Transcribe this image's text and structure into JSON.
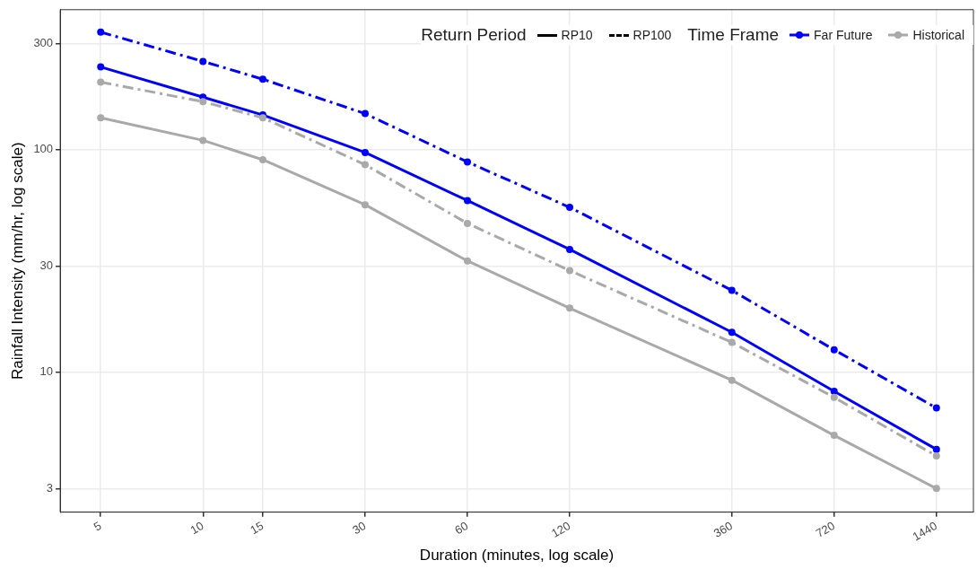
{
  "chart_data": {
    "type": "line",
    "xlabel": "Duration (minutes, log scale)",
    "ylabel": "Rainfall Intensity (mm/hr, log scale)",
    "log": "xy",
    "grid": true,
    "marker": "circle",
    "legend": "top right",
    "legend_title": "Time Frame",
    "annotations": [
      "Return Period",
      "RP10",
      "RP100"
    ],
    "xlim": [
      3.8,
      1850
    ],
    "xticks": [
      5,
      10,
      15,
      30,
      60,
      120,
      360,
      720,
      1440
    ],
    "ylim": [
      2.35,
      425
    ],
    "yticks": [
      3,
      10,
      30,
      100,
      300
    ],
    "x": [
      5,
      10,
      15,
      30,
      60,
      120,
      360,
      720,
      1440
    ],
    "series": [
      {
        "name": "Far Future",
        "line_style": "solid",
        "color": "#0000ff",
        "values": [
          235,
          172,
          143,
          97,
          59,
          35.6,
          15.1,
          8.2,
          4.5
        ]
      },
      {
        "line_style": "dashed",
        "color": "#0000ff",
        "values": [
          337,
          249,
          207,
          145,
          88,
          55,
          23.3,
          12.6,
          6.9
        ]
      },
      {
        "name": "Historical",
        "line_style": "solid",
        "color": "#a9a9a9",
        "values": [
          139,
          110,
          90,
          56.5,
          31.6,
          19.4,
          9.2,
          5.2,
          3.0
        ]
      },
      {
        "line_style": "dashed",
        "color": "#a9a9a9",
        "values": [
          201,
          164,
          139,
          85.5,
          46.6,
          28.6,
          13.6,
          7.7,
          4.2
        ]
      }
    ]
  }
}
